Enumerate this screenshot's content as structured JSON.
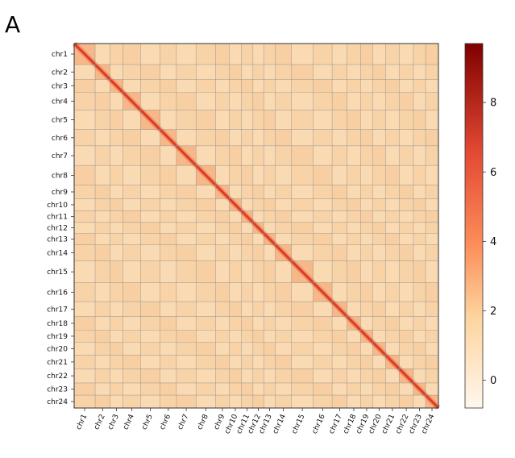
{
  "panel_label": "A",
  "chart_data": {
    "type": "heatmap",
    "title": "",
    "xlabel": "",
    "ylabel": "",
    "categories": [
      "chr1",
      "chr2",
      "chr3",
      "chr4",
      "chr5",
      "chr6",
      "chr7",
      "chr8",
      "chr9",
      "chr10",
      "chr11",
      "chr12",
      "chr13",
      "chr14",
      "chr15",
      "chr16",
      "chr17",
      "chr18",
      "chr19",
      "chr20",
      "chr21",
      "chr22",
      "chr23",
      "chr24"
    ],
    "relative_sizes": [
      1.55,
      1.1,
      0.95,
      1.3,
      1.45,
      1.2,
      1.45,
      1.45,
      1.0,
      0.9,
      0.85,
      0.8,
      0.85,
      1.2,
      1.6,
      1.4,
      1.1,
      1.0,
      0.9,
      0.95,
      1.0,
      1.05,
      0.9,
      0.95
    ],
    "values_description_scale": "symmetric contact matrix with strong diagonal",
    "colormap": "OrRd",
    "colorbar": {
      "ticks": [
        0,
        2,
        4,
        6,
        8
      ],
      "range": [
        -0.8,
        9.7
      ]
    },
    "colors": {
      "low": "#fff3e6",
      "background": "#f9d6ad",
      "mid": "#f08a4b",
      "high": "#7f0000",
      "grid": "#8a8a8a"
    },
    "grid": true
  }
}
